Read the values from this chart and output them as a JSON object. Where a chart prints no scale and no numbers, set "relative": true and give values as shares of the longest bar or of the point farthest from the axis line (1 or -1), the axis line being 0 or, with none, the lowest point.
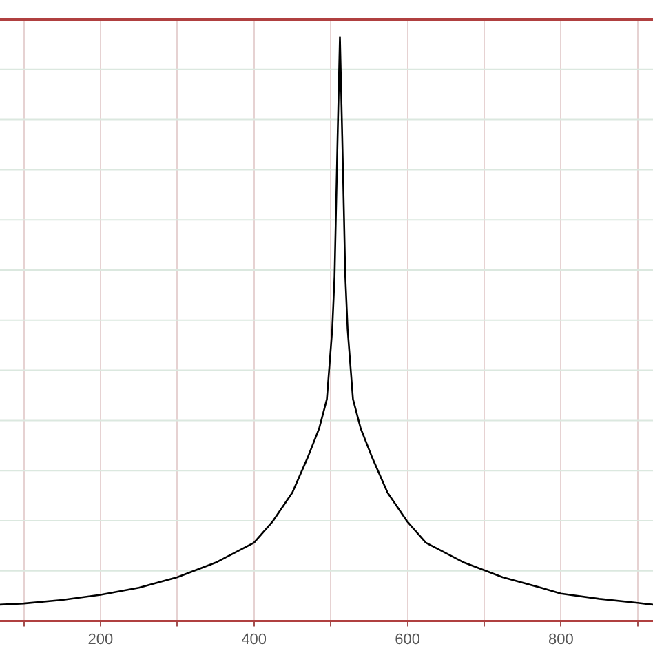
{
  "chart_data": {
    "type": "line",
    "relative": true,
    "tick_labels": "x",
    "grid": true,
    "marker": "none",
    "line_style": "solid",
    "legend": false,
    "xlim": [
      69,
      920
    ],
    "xticks": [
      {
        "value": 100,
        "label": null
      },
      200,
      {
        "value": 300,
        "label": null
      },
      400,
      {
        "value": 500,
        "label": null
      },
      600,
      {
        "value": 700,
        "label": null
      },
      800,
      {
        "value": 900,
        "label": null
      }
    ],
    "series": [
      {
        "color": "#000000",
        "x": [
          69,
          100,
          150,
          200,
          250,
          300,
          350,
          400,
          424,
          450,
          470,
          485,
          495,
          502,
          505,
          509,
          512,
          515,
          519,
          522,
          529,
          539,
          554,
          574,
          600,
          624,
          674,
          724,
          774,
          800,
          850,
          900,
          920
        ],
        "values": [
          0.028,
          0.03,
          0.036,
          0.045,
          0.057,
          0.075,
          0.1,
          0.134,
          0.17,
          0.22,
          0.28,
          0.33,
          0.38,
          0.5,
          0.59,
          0.83,
          1,
          0.83,
          0.59,
          0.5,
          0.38,
          0.33,
          0.28,
          0.22,
          0.17,
          0.134,
          0.1,
          0.075,
          0.057,
          0.047,
          0.038,
          0.031,
          0.028
        ]
      }
    ]
  }
}
